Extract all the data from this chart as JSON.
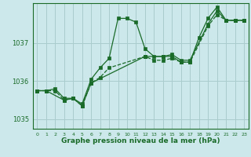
{
  "bg_color": "#cce8ea",
  "grid_color": "#aacccc",
  "line_color": "#1a6b2a",
  "xlabel": "Graphe pression niveau de la mer (hPa)",
  "ylim": [
    1034.75,
    1038.05
  ],
  "xlim": [
    -0.5,
    23.5
  ],
  "yticks": [
    1035,
    1036,
    1037
  ],
  "xticks": [
    0,
    1,
    2,
    3,
    4,
    5,
    6,
    7,
    8,
    9,
    10,
    11,
    12,
    13,
    14,
    15,
    16,
    17,
    18,
    19,
    20,
    21,
    22,
    23
  ],
  "line1_x": [
    0,
    1,
    2,
    3,
    4,
    5,
    6,
    7,
    8,
    9,
    10,
    11,
    12,
    13,
    14,
    15,
    16,
    17,
    18,
    19,
    20,
    21,
    22,
    23
  ],
  "line1_y": [
    1035.75,
    1035.75,
    1035.8,
    1035.55,
    1035.55,
    1035.4,
    1036.05,
    1036.35,
    1036.6,
    1037.65,
    1037.65,
    1037.55,
    1036.85,
    1036.65,
    1036.65,
    1036.65,
    1036.5,
    1036.5,
    1037.15,
    1037.65,
    1037.95,
    1037.6,
    1037.6,
    1037.6
  ],
  "line1_style": "-",
  "line2_x": [
    0,
    1,
    3,
    4,
    5,
    6,
    12,
    14,
    15,
    16,
    17,
    19,
    20,
    21,
    22,
    23
  ],
  "line2_y": [
    1035.75,
    1035.75,
    1035.5,
    1035.55,
    1035.35,
    1035.95,
    1036.65,
    1036.65,
    1036.7,
    1036.55,
    1036.55,
    1037.5,
    1037.85,
    1037.6,
    1037.6,
    1037.6
  ],
  "line2_style": "-",
  "line3_x": [
    0,
    1,
    2,
    3,
    4,
    5,
    6,
    7,
    8,
    12,
    13,
    14,
    15,
    16,
    17,
    19,
    20,
    21,
    22,
    23
  ],
  "line3_y": [
    1035.75,
    1035.75,
    1035.75,
    1035.5,
    1035.55,
    1035.35,
    1035.95,
    1036.1,
    1036.35,
    1036.65,
    1036.55,
    1036.55,
    1036.6,
    1036.5,
    1036.5,
    1037.45,
    1037.75,
    1037.6,
    1037.6,
    1037.6
  ],
  "line3_style": "--"
}
